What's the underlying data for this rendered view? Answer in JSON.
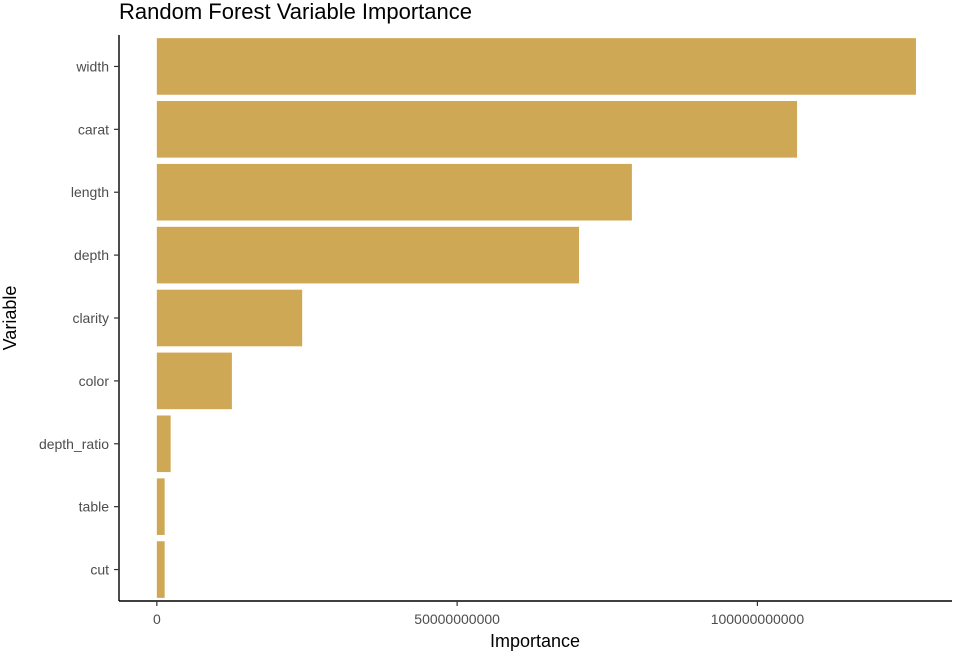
{
  "chart_data": {
    "type": "bar",
    "orientation": "horizontal",
    "title": "Random Forest Variable Importance",
    "xlabel": "Importance",
    "ylabel": "Variable",
    "categories": [
      "width",
      "carat",
      "length",
      "depth",
      "clarity",
      "color",
      "depth_ratio",
      "table",
      "cut"
    ],
    "values": [
      126400000000,
      106600000000,
      79100000000,
      70300000000,
      24200000000,
      12500000000,
      2300000000,
      1300000000,
      1300000000
    ],
    "x_ticks": [
      0,
      50000000000,
      100000000000
    ],
    "x_tick_labels": [
      "0",
      "50000000000",
      "100000000000"
    ],
    "xlim": [
      -6300000000,
      132400000000
    ],
    "bar_color": "#CFA855",
    "grid": false,
    "legend": "none"
  }
}
